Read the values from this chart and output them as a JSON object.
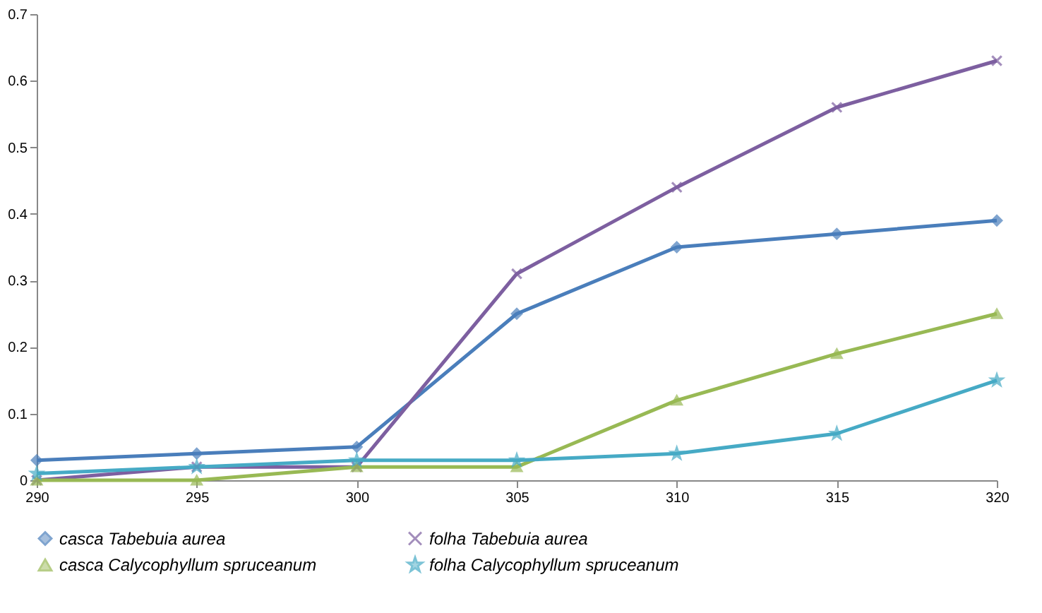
{
  "chart_data": {
    "type": "line",
    "x": [
      290,
      295,
      300,
      305,
      310,
      315,
      320
    ],
    "series": [
      {
        "name": "casca Tabebuia aurea",
        "color": "#4a7ebb",
        "marker": "diamond",
        "values": [
          0.03,
          0.04,
          0.05,
          0.25,
          0.35,
          0.37,
          0.39
        ]
      },
      {
        "name": "folha Tabebuia aurea",
        "color": "#7d5fa0",
        "marker": "cross",
        "values": [
          0.0,
          0.02,
          0.02,
          0.31,
          0.44,
          0.56,
          0.63
        ]
      },
      {
        "name": "casca Calycophyllum spruceanum",
        "color": "#98b954",
        "marker": "triangle",
        "values": [
          0.0,
          0.0,
          0.02,
          0.02,
          0.12,
          0.19,
          0.25
        ]
      },
      {
        "name": "folha Calycophyllum spruceanum",
        "color": "#46aac5",
        "marker": "star",
        "values": [
          0.01,
          0.02,
          0.03,
          0.03,
          0.04,
          0.07,
          0.15
        ]
      }
    ],
    "xlim": [
      290,
      320
    ],
    "xticks": [
      290,
      295,
      300,
      305,
      310,
      315,
      320
    ],
    "ylim": [
      0,
      0.7
    ],
    "yticks": [
      0,
      0.1,
      0.2,
      0.3,
      0.4,
      0.5,
      0.6,
      0.7
    ],
    "grid": false,
    "legend": "bottom",
    "line_style": "solid"
  }
}
